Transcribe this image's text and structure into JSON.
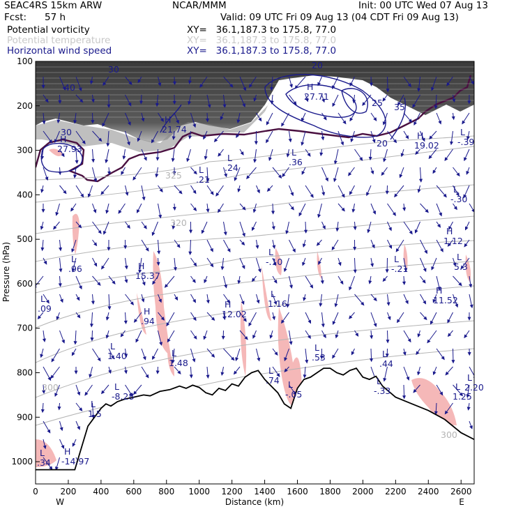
{
  "header": {
    "model": "SEAC4RS 15km ARW",
    "org": "NCAR/MMM",
    "init": "Init: 00 UTC Wed 07 Aug 13",
    "fcst_label": "Fcst:",
    "fcst_value": "57 h",
    "valid": "Valid: 09 UTC Fri 09 Aug 13 (04 CDT Fri 09 Aug 13)"
  },
  "legend": [
    {
      "label": "Potential vorticity",
      "xy": "XY=   36.1,187.3 to 175.8, 77.0",
      "color": "#000000"
    },
    {
      "label": "Potential temperature",
      "xy": "XY=   36.1,187.3 to 175.8, 77.0",
      "color": "#c8c8c8"
    },
    {
      "label": "Horizontal wind speed",
      "xy": "XY=   36.1,187.3 to 175.8, 77.0",
      "color": "#1a1a8c"
    }
  ],
  "colors": {
    "wind": "#1a1a8c",
    "theta": "#b4b4b4",
    "pv_shade": "#f5b8b8",
    "pv_dark": "#4a4a4a",
    "tropopause": "#4a1040"
  },
  "chart_data": {
    "type": "cross-section",
    "xlabel": "Distance (km)",
    "ylabel": "Pressure (hPa)",
    "xlim": [
      0,
      2680
    ],
    "ylim": [
      1050,
      100
    ],
    "x_ticks": [
      "0",
      "200",
      "400",
      "600",
      "800",
      "1000",
      "1200",
      "1400",
      "1600",
      "1800",
      "2000",
      "2200",
      "2400",
      "2600"
    ],
    "y_ticks": [
      "100",
      "200",
      "300",
      "400",
      "500",
      "600",
      "700",
      "800",
      "900",
      "1000"
    ],
    "x_end_labels": {
      "left": "W",
      "right": "E"
    },
    "terrain": [
      [
        0,
        1018
      ],
      [
        150,
        1018
      ],
      [
        240,
        1018
      ],
      [
        320,
        920
      ],
      [
        360,
        900
      ],
      [
        400,
        880
      ],
      [
        430,
        870
      ],
      [
        460,
        875
      ],
      [
        500,
        865
      ],
      [
        540,
        860
      ],
      [
        600,
        855
      ],
      [
        660,
        850
      ],
      [
        700,
        852
      ],
      [
        760,
        842
      ],
      [
        820,
        838
      ],
      [
        880,
        830
      ],
      [
        920,
        835
      ],
      [
        960,
        828
      ],
      [
        1000,
        833
      ],
      [
        1040,
        845
      ],
      [
        1080,
        850
      ],
      [
        1120,
        835
      ],
      [
        1160,
        840
      ],
      [
        1200,
        825
      ],
      [
        1240,
        830
      ],
      [
        1280,
        810
      ],
      [
        1320,
        800
      ],
      [
        1360,
        795
      ],
      [
        1400,
        815
      ],
      [
        1440,
        830
      ],
      [
        1480,
        845
      ],
      [
        1520,
        870
      ],
      [
        1560,
        880
      ],
      [
        1600,
        835
      ],
      [
        1640,
        815
      ],
      [
        1680,
        810
      ],
      [
        1720,
        800
      ],
      [
        1760,
        790
      ],
      [
        1800,
        790
      ],
      [
        1840,
        800
      ],
      [
        1880,
        805
      ],
      [
        1920,
        795
      ],
      [
        1960,
        790
      ],
      [
        2000,
        810
      ],
      [
        2040,
        815
      ],
      [
        2080,
        808
      ],
      [
        2120,
        830
      ],
      [
        2200,
        855
      ],
      [
        2300,
        870
      ],
      [
        2400,
        885
      ],
      [
        2500,
        905
      ],
      [
        2600,
        935
      ],
      [
        2680,
        950
      ]
    ],
    "theta_contour_labels": [
      "325",
      "320",
      "300",
      "300"
    ],
    "wind_contour_labels": [
      "30",
      "20",
      "25",
      "35",
      "30",
      "40",
      "20"
    ],
    "extrema_labels": [
      {
        "type": "H",
        "value": "27.93"
      },
      {
        "type": "H",
        "value": "21.74"
      },
      {
        "type": "H",
        "value": "27.71"
      },
      {
        "type": "H",
        "value": "19.02"
      },
      {
        "type": "L",
        "value": ".21"
      },
      {
        "type": "L",
        "value": ".24"
      },
      {
        "type": "L",
        "value": ".36"
      },
      {
        "type": "L",
        "value": "-.30"
      },
      {
        "type": "L",
        "value": "-.39"
      },
      {
        "type": "L",
        "value": ".96"
      },
      {
        "type": "H",
        "value": "15.37"
      },
      {
        "type": "L",
        "value": "-.10"
      },
      {
        "type": "L",
        "value": "-.21"
      },
      {
        "type": "H",
        "value": "1.12"
      },
      {
        "type": "L",
        "value": "5.3"
      },
      {
        "type": "H",
        "value": "11.52"
      },
      {
        "type": "L",
        "value": ".09"
      },
      {
        "type": "H",
        "value": ".94"
      },
      {
        "type": "H",
        "value": "12.02"
      },
      {
        "type": "L",
        "value": "1.16"
      },
      {
        "type": "L",
        "value": "1.40"
      },
      {
        "type": "L",
        "value": "1.48"
      },
      {
        "type": "L",
        "value": ".53"
      },
      {
        "type": "L",
        "value": ".44"
      },
      {
        "type": "L",
        "value": "2.20"
      },
      {
        "type": "L",
        "value": "1.25"
      },
      {
        "type": "L",
        "value": "-8.28"
      },
      {
        "type": "L",
        "value": "-.05"
      },
      {
        "type": "L",
        "value": "-.33"
      },
      {
        "type": "L",
        "value": "1.5"
      },
      {
        "type": "L",
        "value": ".74"
      },
      {
        "type": "H",
        "value": "-14.97"
      },
      {
        "type": "L",
        "value": ".34"
      }
    ]
  }
}
